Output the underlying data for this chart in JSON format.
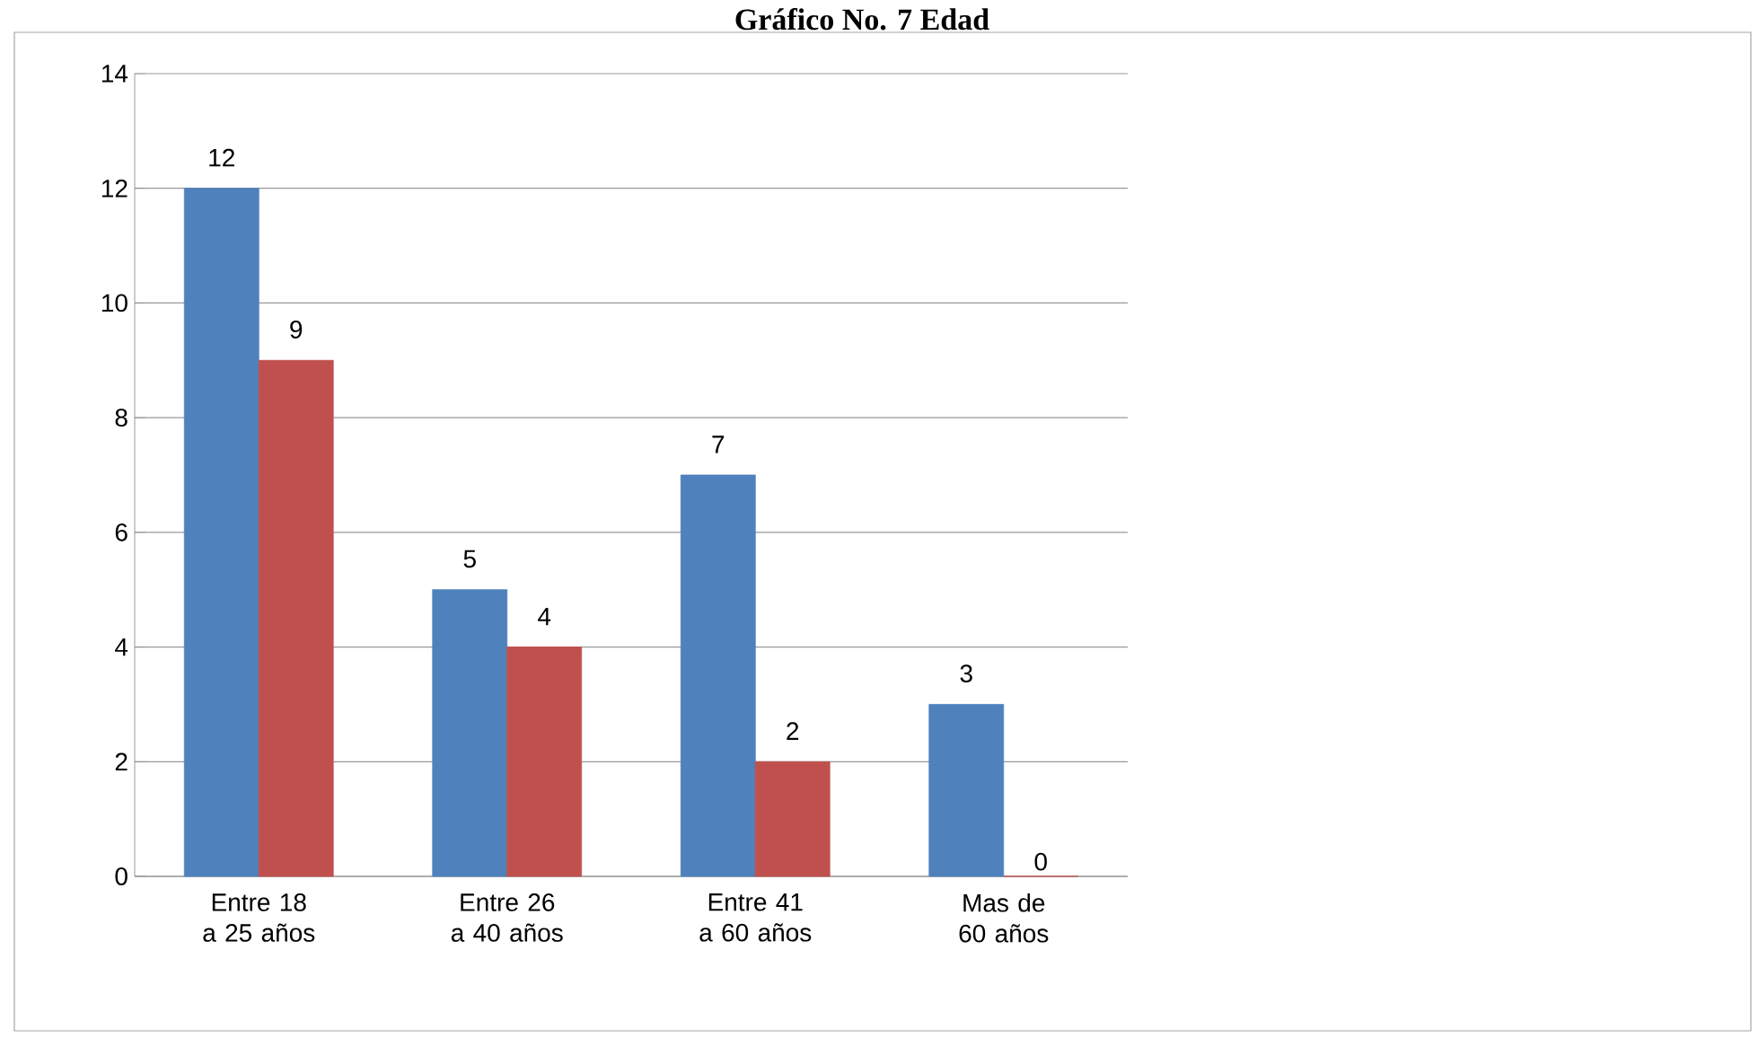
{
  "chart_data": {
    "type": "bar",
    "title": "Gráfico No. 7 Edad",
    "categories": [
      "Entre 18 a 25 años",
      "Entre 26 a 40 años",
      "Entre 41 a 60 años",
      "Mas de 60 años"
    ],
    "series": [
      {
        "color": "#4f81bd",
        "values": [
          12,
          5,
          7,
          3
        ]
      },
      {
        "color": "#c0504d",
        "values": [
          9,
          4,
          2,
          0
        ]
      }
    ],
    "ylim": [
      0,
      14
    ],
    "yticks": [
      0,
      2,
      4,
      6,
      8,
      10,
      12,
      14
    ],
    "grid": "y",
    "data_labels": true
  }
}
